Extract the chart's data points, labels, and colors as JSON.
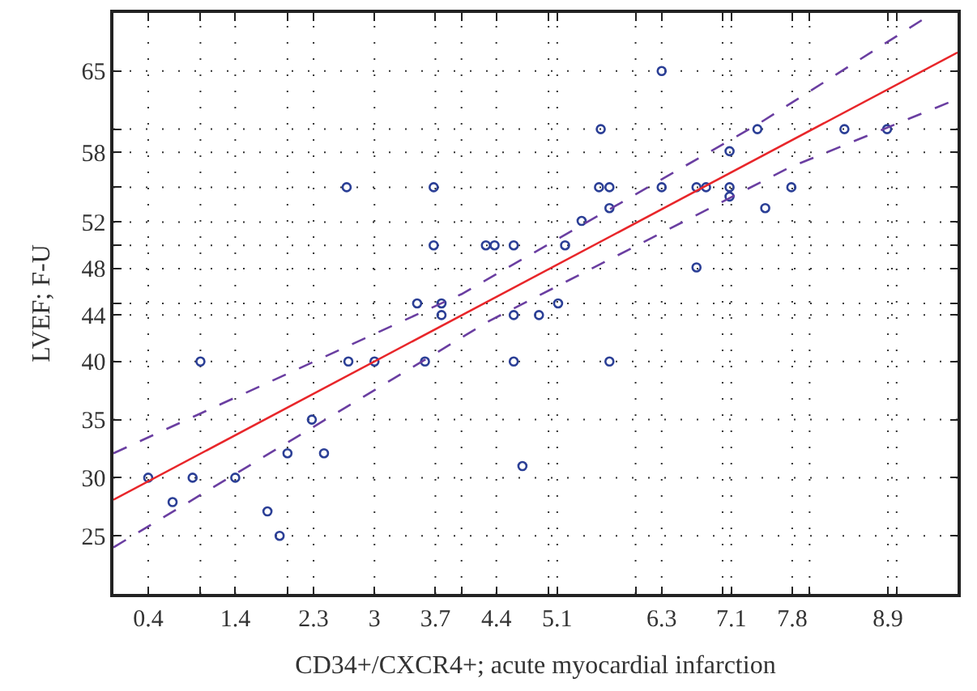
{
  "chart_data": {
    "type": "scatter",
    "xlabel": "CD34+/CXCR4+; acute myocardial infarction",
    "ylabel": "LVEF; F-U",
    "xlim": [
      0,
      9.7
    ],
    "ylim": [
      20,
      70
    ],
    "xticks": [
      0.4,
      1.4,
      2.3,
      3,
      3.7,
      4.4,
      5.1,
      6.3,
      7.1,
      7.8,
      8.9,
      {
        "value": 1,
        "label": null
      },
      {
        "value": 2,
        "label": null
      },
      {
        "value": 4,
        "label": null
      },
      {
        "value": 5,
        "label": null
      },
      {
        "value": 6,
        "label": null
      },
      {
        "value": 7,
        "label": null
      },
      {
        "value": 8,
        "label": null
      },
      {
        "value": 9,
        "label": null
      }
    ],
    "yticks": [
      25,
      30,
      35,
      40,
      44,
      48,
      52,
      58,
      65,
      {
        "value": 45,
        "label": null
      },
      {
        "value": 50,
        "label": null
      },
      {
        "value": 55,
        "label": null
      },
      {
        "value": 60,
        "label": null
      }
    ],
    "grid": true,
    "series": [
      {
        "marker": "circle",
        "color": "#2b3f96",
        "x": [
          0.4,
          0.68,
          0.91,
          1.0,
          1.4,
          1.77,
          1.91,
          2.0,
          2.28,
          2.42,
          2.68,
          2.7,
          3.0,
          3.49,
          3.58,
          3.68,
          3.68,
          3.77,
          3.77,
          4.28,
          4.38,
          4.6,
          4.6,
          4.6,
          4.7,
          4.89,
          5.11,
          5.19,
          5.38,
          5.58,
          5.6,
          5.7,
          5.7,
          5.7,
          6.3,
          6.3,
          6.7,
          6.7,
          6.81,
          7.08,
          7.08,
          7.08,
          7.4,
          7.49,
          7.79,
          8.4,
          8.89
        ],
        "values": [
          30,
          27.9,
          30,
          40,
          30,
          27.1,
          25,
          32.1,
          35,
          32.1,
          55,
          40,
          40,
          45,
          40,
          55,
          50,
          45,
          44,
          50,
          50,
          50,
          44,
          40,
          31,
          44,
          45,
          50,
          52.1,
          55,
          60,
          55,
          53.2,
          40,
          65,
          55,
          55,
          48.1,
          55,
          58.1,
          55,
          54.2,
          60,
          53.2,
          55,
          60,
          60
        ]
      },
      {
        "type": "line",
        "marker": "none",
        "line_style": "solid",
        "color": "#e8262a",
        "x": [
          0,
          9.7
        ],
        "values": [
          28.1,
          66.6
        ]
      },
      {
        "type": "line",
        "marker": "none",
        "line_style": "dashed",
        "color": "#6a3ea1",
        "x": [
          0,
          4.0,
          7.4,
          9.42
        ],
        "values": [
          32.1,
          45.8,
          60.4,
          70
        ]
      },
      {
        "type": "line",
        "marker": "none",
        "line_style": "dashed",
        "color": "#6a3ea1",
        "x": [
          0,
          4.32,
          7.77,
          9.7
        ],
        "values": [
          24.0,
          43.5,
          56.7,
          62.6
        ]
      }
    ]
  }
}
